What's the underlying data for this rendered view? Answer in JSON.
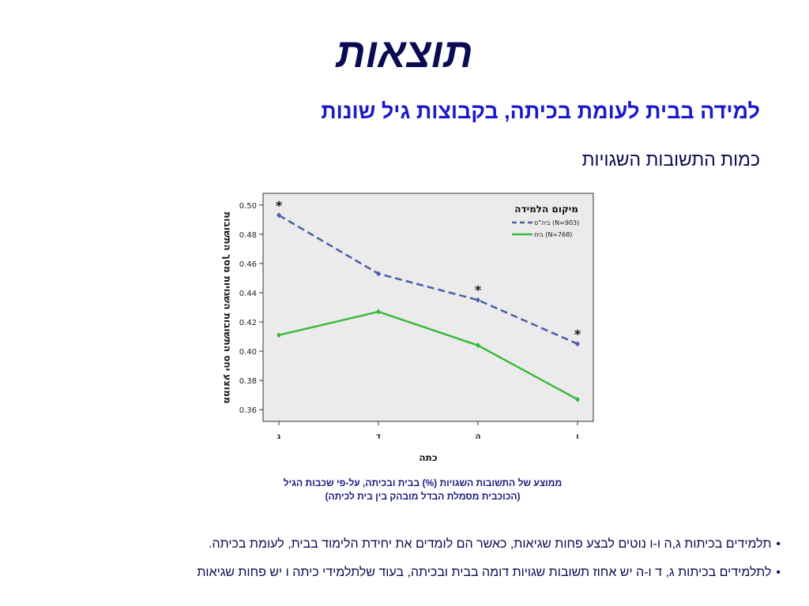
{
  "slide": {
    "title": "תוצאות",
    "subtitle": "למידה בבית לעומת בכיתה, בקבוצות גיל שונות",
    "subheading": "כמות התשובות השגויות"
  },
  "chart_data": {
    "type": "line",
    "ylabel": "ממוצע יחס התשובות השגויות מסך התשובות",
    "xlabel": "כתה",
    "categories": [
      "ג",
      "ד",
      "ה",
      "ו"
    ],
    "ylim": [
      0.352,
      0.508
    ],
    "yticks": [
      "0.36",
      "0.38",
      "0.40",
      "0.42",
      "0.44",
      "0.46",
      "0.48",
      "0.50"
    ],
    "ytick_values": [
      0.36,
      0.38,
      0.4,
      0.42,
      0.44,
      0.46,
      0.48,
      0.5
    ],
    "grid": false,
    "legend_title": "מיקום הלמידה",
    "legend_position": "top-right",
    "series": [
      {
        "name": "ביה\"ס (N=903)",
        "values": [
          0.493,
          0.453,
          0.435,
          0.405
        ],
        "color": "#4a5ea8",
        "dashed": true
      },
      {
        "name": "בית (N=768)",
        "values": [
          0.411,
          0.427,
          0.404,
          0.367
        ],
        "color": "#3cb83c",
        "dashed": false
      }
    ],
    "significance_marks": [
      {
        "category_index": 0,
        "label": "*",
        "value": 0.493
      },
      {
        "category_index": 2,
        "label": "*",
        "value": 0.435
      },
      {
        "category_index": 3,
        "label": "*",
        "value": 0.405
      }
    ]
  },
  "caption": {
    "line1": "ממוצע של התשובות השגויות (%) בבית ובכיתה, על-פי שכבות הגיל",
    "line2": "(הכוכבית מסמלת הבדל מובהק בין בית לכיתה)"
  },
  "bullets": [
    {
      "marker": "•",
      "text": "תלמידים בכיתות ג,ה ו-ו נוטים לבצע פחות שגיאות, כאשר הם לומדים את יחידת הלימוד בבית, לעומת בכיתה."
    },
    {
      "marker": "•",
      "text": "לתלמידים בכיתות ג, ד ו-ה יש אחוז תשובות שגויות דומה בבית ובכיתה, בעוד שלתלמידי כיתה ו יש פחות שגיאות"
    }
  ],
  "colors": {
    "plot_background": "#ebebeb",
    "title": "#0b0b52",
    "subtitle": "#1a1acc"
  }
}
